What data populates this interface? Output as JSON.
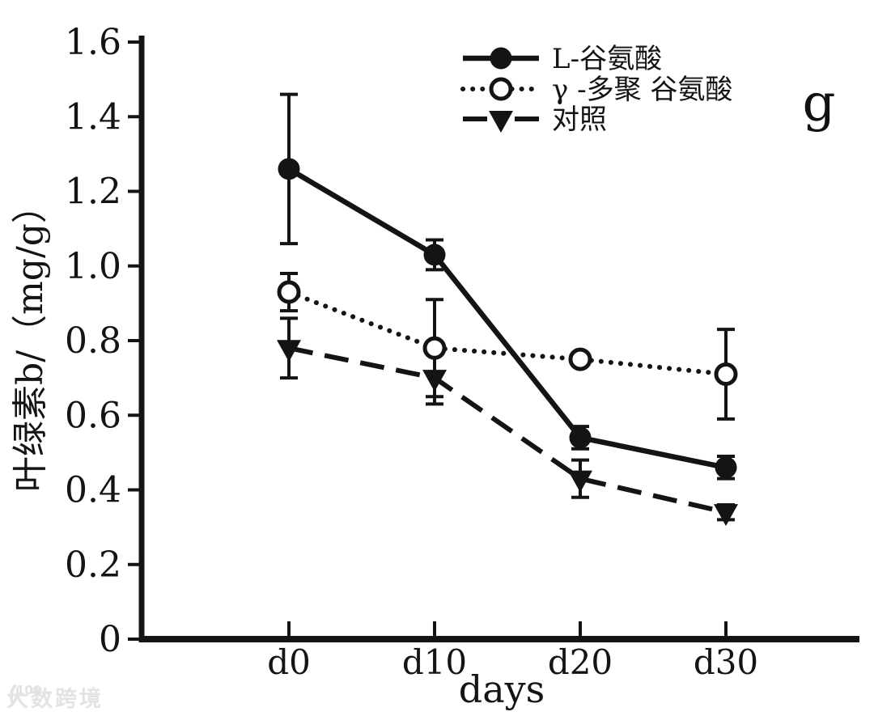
{
  "panel_label": "g",
  "watermark": {
    "logo": "100",
    "text": "大数跨境"
  },
  "chart_data": {
    "type": "line",
    "title": "",
    "xlabel": "days",
    "ylabel": "叶绿素b/（mg/g）",
    "categories": [
      "d0",
      "d10",
      "d20",
      "d30"
    ],
    "ylim": [
      0,
      1.6
    ],
    "yticks": [
      "0",
      "0.2",
      "0.4",
      "0.6",
      "0.8",
      "1.0",
      "1.2",
      "1.4",
      "1.6"
    ],
    "grid": false,
    "legend_position": "top-right-inside",
    "series": [
      {
        "name": "L-谷氨酸",
        "marker": "filled-circle",
        "line": "solid",
        "values": [
          1.26,
          1.03,
          0.54,
          0.46
        ],
        "errors": [
          0.2,
          0.04,
          0.03,
          0.03
        ]
      },
      {
        "name": "γ -多聚 谷氨酸",
        "marker": "open-circle",
        "line": "dotted",
        "values": [
          0.93,
          0.78,
          0.75,
          0.71
        ],
        "errors": [
          0.05,
          0.13,
          0,
          0.12
        ]
      },
      {
        "name": "对照",
        "marker": "filled-triangle",
        "line": "dashed",
        "values": [
          0.78,
          0.7,
          0.43,
          0.34
        ],
        "errors": [
          0.08,
          0.07,
          0.05,
          0.02
        ]
      }
    ],
    "colors": {
      "foreground": "#141414",
      "background": "#ffffff",
      "watermark": "#e3e3e3"
    }
  }
}
